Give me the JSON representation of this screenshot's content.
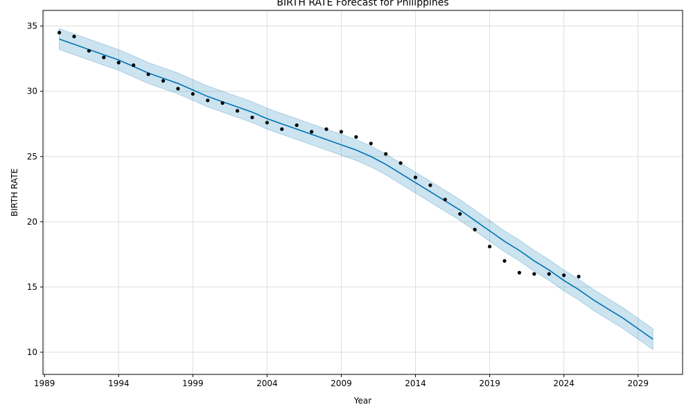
{
  "chart_data": {
    "type": "line",
    "title": "BIRTH RATE Forecast for Philippines",
    "xlabel": "Year",
    "ylabel": "BIRTH RATE",
    "xlim": [
      1988.9,
      2032.0
    ],
    "ylim": [
      8.3,
      36.2
    ],
    "grid": true,
    "x_ticks": [
      1989,
      1994,
      1999,
      2004,
      2009,
      2014,
      2019,
      2024,
      2029
    ],
    "y_ticks": [
      10,
      15,
      20,
      25,
      30,
      35
    ],
    "colors": {
      "forecast": "#0072B2",
      "band": "#0072B2",
      "points": "#000000",
      "grid": "#dddddd"
    },
    "observed": {
      "x": [
        1990,
        1991,
        1992,
        1993,
        1994,
        1995,
        1996,
        1997,
        1998,
        1999,
        2000,
        2001,
        2002,
        2003,
        2004,
        2005,
        2006,
        2007,
        2008,
        2009,
        2010,
        2011,
        2012,
        2013,
        2014,
        2015,
        2016,
        2017,
        2018,
        2019,
        2020,
        2021,
        2022,
        2023,
        2024,
        2025
      ],
      "y": [
        34.5,
        34.2,
        33.1,
        32.6,
        32.2,
        32.0,
        31.3,
        30.8,
        30.2,
        29.8,
        29.3,
        29.1,
        28.5,
        28.0,
        27.6,
        27.1,
        27.4,
        26.9,
        27.1,
        26.9,
        26.5,
        26.0,
        25.2,
        24.5,
        23.4,
        22.8,
        21.7,
        20.6,
        19.4,
        18.1,
        17.0,
        16.1,
        16.0,
        16.0,
        15.9,
        15.8
      ]
    },
    "forecast": {
      "x": [
        1990,
        1991,
        1992,
        1993,
        1994,
        1995,
        1996,
        1997,
        1998,
        1999,
        2000,
        2001,
        2002,
        2003,
        2004,
        2005,
        2006,
        2007,
        2008,
        2009,
        2010,
        2011,
        2012,
        2013,
        2014,
        2015,
        2016,
        2017,
        2018,
        2019,
        2020,
        2021,
        2022,
        2023,
        2024,
        2025,
        2026,
        2027,
        2028,
        2029,
        2030
      ],
      "yhat": [
        34.0,
        33.6,
        33.2,
        32.8,
        32.4,
        31.9,
        31.4,
        31.0,
        30.6,
        30.1,
        29.6,
        29.2,
        28.8,
        28.4,
        27.9,
        27.5,
        27.1,
        26.7,
        26.3,
        25.9,
        25.5,
        25.0,
        24.4,
        23.7,
        23.0,
        22.3,
        21.6,
        20.9,
        20.1,
        19.3,
        18.5,
        17.8,
        17.0,
        16.3,
        15.5,
        14.8,
        14.0,
        13.3,
        12.6,
        11.8,
        11.0
      ],
      "lower": [
        33.2,
        32.8,
        32.4,
        32.0,
        31.6,
        31.1,
        30.6,
        30.2,
        29.8,
        29.3,
        28.8,
        28.4,
        28.0,
        27.6,
        27.1,
        26.7,
        26.3,
        25.9,
        25.5,
        25.1,
        24.7,
        24.2,
        23.6,
        22.9,
        22.2,
        21.5,
        20.8,
        20.1,
        19.3,
        18.5,
        17.7,
        17.0,
        16.2,
        15.5,
        14.7,
        14.0,
        13.2,
        12.5,
        11.8,
        11.0,
        10.2
      ],
      "upper": [
        34.8,
        34.4,
        34.0,
        33.6,
        33.2,
        32.7,
        32.2,
        31.8,
        31.4,
        30.9,
        30.4,
        30.0,
        29.6,
        29.2,
        28.7,
        28.3,
        27.9,
        27.5,
        27.1,
        26.7,
        26.3,
        25.8,
        25.2,
        24.5,
        23.8,
        23.1,
        22.4,
        21.7,
        20.9,
        20.1,
        19.3,
        18.6,
        17.8,
        17.1,
        16.3,
        15.6,
        14.8,
        14.1,
        13.4,
        12.6,
        11.8
      ]
    }
  }
}
